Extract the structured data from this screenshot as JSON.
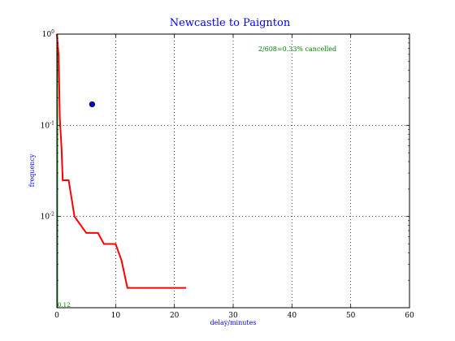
{
  "chart_data": {
    "type": "line",
    "title": "Newcastle to Paignton",
    "xlabel": "delay/minutes",
    "ylabel": "frequency",
    "xlim": [
      0,
      60
    ],
    "ylim": [
      0.001,
      1
    ],
    "yscale": "log",
    "grid": true,
    "x_ticks": [
      0,
      10,
      20,
      30,
      40,
      50,
      60
    ],
    "x_tick_labels": [
      "0",
      "10",
      "20",
      "30",
      "40",
      "50",
      "60"
    ],
    "y_ticks": [
      1,
      0.1,
      0.01
    ],
    "y_tick_labels": [
      {
        "base": "10",
        "exp": "0"
      },
      {
        "base": "10",
        "exp": "-1"
      },
      {
        "base": "10",
        "exp": "-2"
      }
    ],
    "cancel_text": "2/608=0.33% cancelled",
    "median_text": "0.12",
    "series": [
      {
        "color": "#ff0000",
        "x": [
          0,
          0.3,
          0.5,
          0.8,
          1,
          2,
          3,
          5,
          7,
          8,
          10,
          11,
          12,
          22
        ],
        "y": [
          1,
          0.58,
          0.12,
          0.055,
          0.025,
          0.025,
          0.01,
          0.0066,
          0.0066,
          0.005,
          0.005,
          0.0033,
          0.00165,
          0.00165
        ]
      }
    ],
    "mean_point": {
      "x": 6,
      "y": 0.17,
      "color": "#0000ff"
    },
    "median_line": {
      "x": 0.12,
      "color": "#008000"
    }
  }
}
